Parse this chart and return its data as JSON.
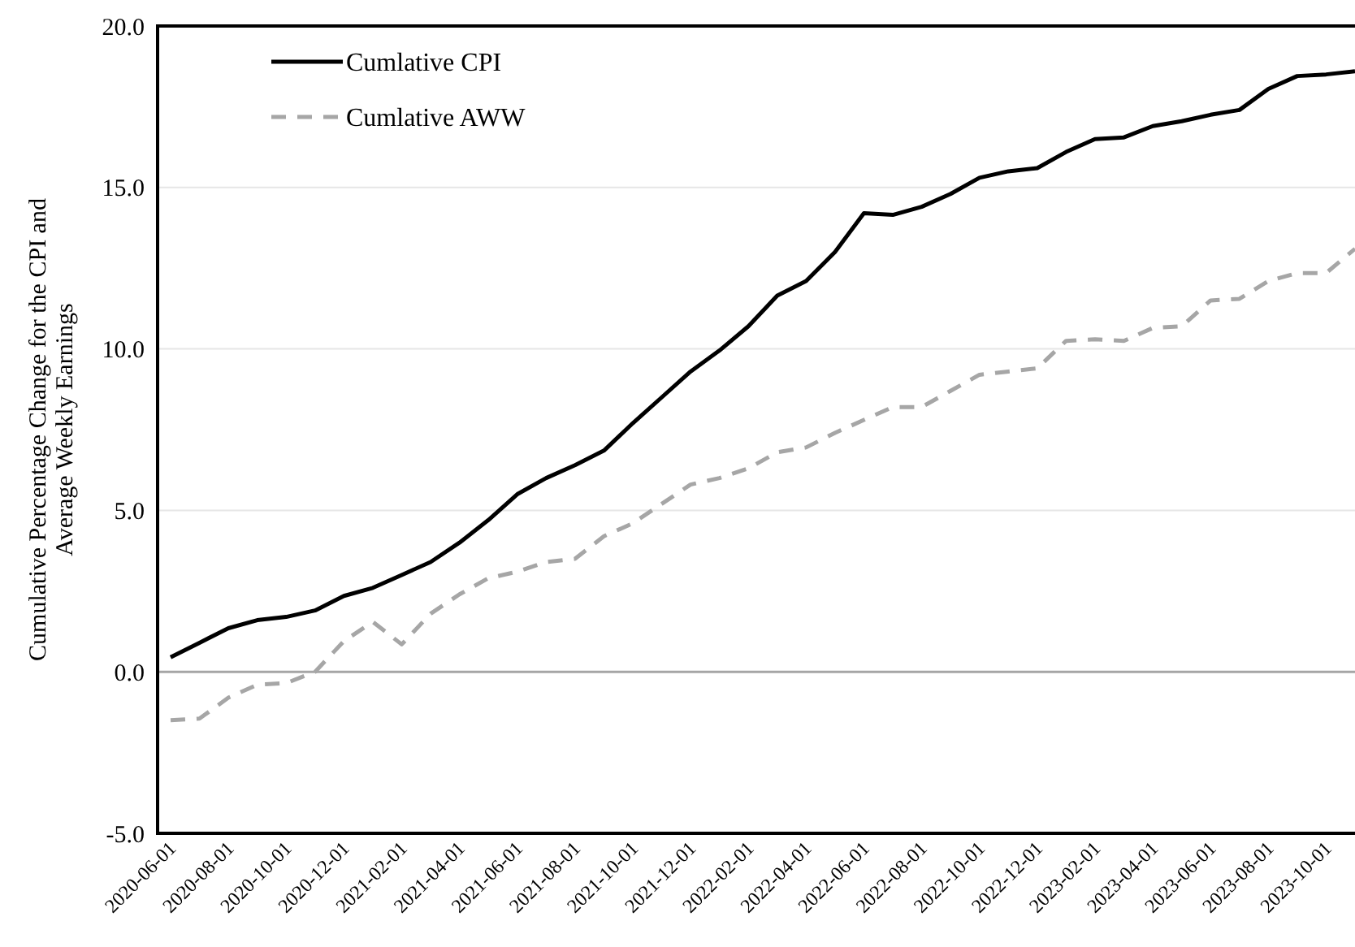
{
  "chart_data": {
    "type": "line",
    "ylabel": "Cumulative Percentage Change for the CPI and Average Weekly Earnings",
    "categories": [
      "2020-06-01",
      null,
      "2020-08-01",
      null,
      "2020-10-01",
      null,
      "2020-12-01",
      null,
      "2021-02-01",
      null,
      "2021-04-01",
      null,
      "2021-06-01",
      null,
      "2021-08-01",
      null,
      "2021-10-01",
      null,
      "2021-12-01",
      null,
      "2022-02-01",
      null,
      "2022-04-01",
      null,
      "2022-06-01",
      null,
      "2022-08-01",
      null,
      "2022-10-01",
      null,
      "2022-12-01",
      null,
      "2023-02-01",
      null,
      "2023-04-01",
      null,
      "2023-06-01",
      null,
      "2023-08-01",
      null,
      "2023-10-01",
      null
    ],
    "series": [
      {
        "name": "Cumlative CPI",
        "color": "#000000",
        "line_style": "solid",
        "values": [
          0.45,
          0.9,
          1.35,
          1.6,
          1.7,
          1.9,
          2.35,
          2.6,
          3.0,
          3.4,
          4.0,
          4.7,
          5.5,
          6.0,
          6.4,
          6.85,
          7.7,
          8.5,
          9.3,
          9.95,
          10.7,
          11.65,
          12.1,
          13.0,
          14.2,
          14.15,
          14.4,
          14.8,
          15.3,
          15.5,
          15.6,
          16.1,
          16.5,
          16.55,
          16.9,
          17.05,
          17.25,
          17.4,
          18.05,
          18.45,
          18.5,
          18.6
        ]
      },
      {
        "name": "Cumlative AWW",
        "color": "#a6a6a6",
        "line_style": "dashed",
        "values": [
          -1.5,
          -1.45,
          -0.8,
          -0.4,
          -0.35,
          0.0,
          0.95,
          1.55,
          0.85,
          1.8,
          2.4,
          2.9,
          3.1,
          3.4,
          3.5,
          4.2,
          4.6,
          5.2,
          5.8,
          6.0,
          6.3,
          6.8,
          6.95,
          7.4,
          7.8,
          8.2,
          8.2,
          8.7,
          9.2,
          9.3,
          9.4,
          10.25,
          10.3,
          10.25,
          10.65,
          10.7,
          11.5,
          11.55,
          12.1,
          12.35,
          12.35,
          13.1
        ]
      }
    ],
    "ylim": [
      -5,
      20
    ],
    "yticks": [
      {
        "value": -5,
        "label": "-5.0"
      },
      {
        "value": 0,
        "label": "0.0"
      },
      {
        "value": 5,
        "label": "5.0"
      },
      {
        "value": 10,
        "label": "10.0"
      },
      {
        "value": 15,
        "label": "15.0"
      },
      {
        "value": 20,
        "label": "20.0"
      }
    ],
    "grid": "y",
    "legend": "top left",
    "ref_lines": [
      {
        "axis": "y",
        "value": 0,
        "color": "#a6a6a6"
      }
    ]
  }
}
